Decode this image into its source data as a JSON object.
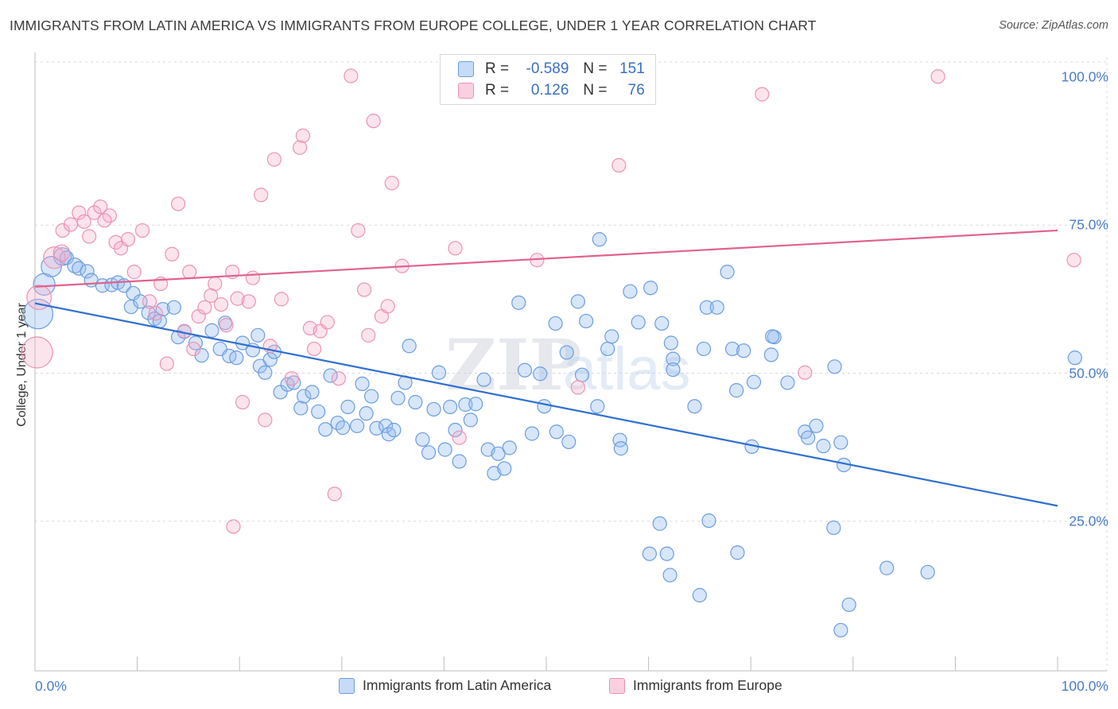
{
  "header": {
    "title": "IMMIGRANTS FROM LATIN AMERICA VS IMMIGRANTS FROM EUROPE COLLEGE, UNDER 1 YEAR CORRELATION CHART",
    "source": "Source: ZipAtlas.com"
  },
  "colors": {
    "blue": "#6d9de0",
    "blue_fill": "rgba(150,190,240,0.38)",
    "blue_line": "#2f6fd0",
    "pink": "#ec93b4",
    "pink_fill": "rgba(245,170,200,0.32)",
    "pink_line": "#e0628e",
    "grid": "#d8d8d8",
    "axis_text": "#4a7cc7"
  },
  "legend": {
    "rows": [
      {
        "r_label": "R =",
        "r_value": "-0.589",
        "n_label": "N =",
        "n_value": "151"
      },
      {
        "r_label": "R =",
        "r_value": "0.126",
        "n_label": "N =",
        "n_value": "76"
      }
    ]
  },
  "bottom_legend": {
    "items": [
      "Immigrants from Latin America",
      "Immigrants from Europe"
    ]
  },
  "watermark": {
    "part1": "ZIP",
    "part2": "atlas"
  },
  "chart_data": {
    "type": "scatter",
    "title": "IMMIGRANTS FROM LATIN AMERICA VS IMMIGRANTS FROM EUROPE COLLEGE, UNDER 1 YEAR CORRELATION CHART",
    "xlabel": "",
    "ylabel": "College, Under 1 year",
    "xlim": [
      0,
      100
    ],
    "ylim": [
      0,
      102
    ],
    "x_tick_labels": {
      "left": "0.0%",
      "right": "100.0%"
    },
    "y_ticks": [
      {
        "value": 100,
        "label": "100.0%"
      },
      {
        "value": 75,
        "label": "75.0%"
      },
      {
        "value": 50,
        "label": "50.0%"
      },
      {
        "value": 25,
        "label": "25.0%"
      }
    ],
    "x_minor_ticks": [
      0,
      10,
      20,
      30,
      40,
      50,
      60,
      70,
      80,
      90,
      100
    ],
    "series": [
      {
        "name": "Immigrants from Latin America",
        "color": "blue",
        "r": -0.589,
        "n": 151,
        "trend": {
          "x0": 0,
          "y0": 61.8,
          "x1": 100,
          "y1": 27.6
        },
        "points": [
          [
            0.3,
            60,
            2.2
          ],
          [
            0.9,
            65,
            1.6
          ],
          [
            1.6,
            68,
            1.5
          ],
          [
            2.7,
            69.7,
            1.3
          ],
          [
            3.1,
            69.5,
            1
          ],
          [
            3.9,
            68.2,
            1.1
          ],
          [
            4.3,
            67.7,
            1
          ],
          [
            5.1,
            67.2,
            1
          ],
          [
            5.5,
            65.7,
            1
          ],
          [
            6.6,
            64.8,
            1
          ],
          [
            7.5,
            64.9,
            1
          ],
          [
            8.1,
            65.3,
            1
          ],
          [
            8.7,
            64.8,
            1
          ],
          [
            9.6,
            63.5,
            1
          ],
          [
            9.4,
            61.2,
            1
          ],
          [
            10.3,
            62.1,
            1
          ],
          [
            11.1,
            60.2,
            1
          ],
          [
            11.7,
            59.2,
            1
          ],
          [
            12.5,
            60.8,
            1
          ],
          [
            13.6,
            61.1,
            1
          ],
          [
            12.2,
            58.8,
            1
          ],
          [
            14.0,
            56.1,
            1
          ],
          [
            14.6,
            57,
            1
          ],
          [
            15.7,
            55.1,
            1
          ],
          [
            16.3,
            53,
            1
          ],
          [
            17.3,
            57.2,
            1
          ],
          [
            18.1,
            54.1,
            1
          ],
          [
            18.6,
            58.5,
            1
          ],
          [
            19.0,
            52.9,
            1
          ],
          [
            19.7,
            52.6,
            1
          ],
          [
            20.3,
            55.1,
            1
          ],
          [
            21.3,
            53.9,
            1
          ],
          [
            21.8,
            56.4,
            1
          ],
          [
            22.0,
            51.2,
            1
          ],
          [
            22.5,
            50.1,
            1
          ],
          [
            23.0,
            52.3,
            1
          ],
          [
            23.4,
            53.6,
            1
          ],
          [
            24.0,
            46.8,
            1
          ],
          [
            24.7,
            48.1,
            1
          ],
          [
            25.3,
            48.4,
            1
          ],
          [
            26.0,
            44.1,
            1
          ],
          [
            26.3,
            46.1,
            1
          ],
          [
            27.1,
            46.8,
            1
          ],
          [
            27.7,
            43.5,
            1
          ],
          [
            28.4,
            40.5,
            1
          ],
          [
            28.9,
            49.6,
            1
          ],
          [
            29.6,
            41.6,
            1
          ],
          [
            30.1,
            40.8,
            1
          ],
          [
            30.6,
            44.3,
            1
          ],
          [
            31.5,
            41.1,
            1
          ],
          [
            32.0,
            48.2,
            1
          ],
          [
            32.4,
            43.2,
            1
          ],
          [
            32.9,
            46.1,
            1
          ],
          [
            33.4,
            40.7,
            1
          ],
          [
            34.3,
            41.1,
            1
          ],
          [
            34.6,
            39.7,
            1
          ],
          [
            35.1,
            40.4,
            1
          ],
          [
            35.5,
            45.8,
            1
          ],
          [
            36.2,
            48.4,
            1
          ],
          [
            36.6,
            54.6,
            1
          ],
          [
            37.2,
            45.1,
            1
          ],
          [
            37.9,
            38.8,
            1
          ],
          [
            38.5,
            36.6,
            1
          ],
          [
            39.0,
            43.9,
            1
          ],
          [
            39.5,
            50.1,
            1
          ],
          [
            40.1,
            37.1,
            1
          ],
          [
            40.6,
            44.3,
            1
          ],
          [
            41.1,
            40.4,
            1
          ],
          [
            41.5,
            35.1,
            1
          ],
          [
            42.1,
            44.7,
            1
          ],
          [
            42.6,
            42.1,
            1
          ],
          [
            43.1,
            44.8,
            1
          ],
          [
            43.9,
            48.9,
            1
          ],
          [
            44.3,
            37.1,
            1
          ],
          [
            44.9,
            33.1,
            1
          ],
          [
            45.3,
            36.4,
            1
          ],
          [
            45.9,
            33.9,
            1
          ],
          [
            46.4,
            37.4,
            1
          ],
          [
            47.3,
            61.9,
            1
          ],
          [
            47.9,
            50.5,
            1
          ],
          [
            48.6,
            39.8,
            1
          ],
          [
            49.4,
            49.9,
            1
          ],
          [
            49.8,
            44.4,
            1
          ],
          [
            50.9,
            58.4,
            1
          ],
          [
            51.0,
            40.1,
            1
          ],
          [
            52.0,
            53.5,
            1
          ],
          [
            52.2,
            38.4,
            1
          ],
          [
            53.1,
            62.1,
            1
          ],
          [
            53.5,
            49.7,
            1
          ],
          [
            53.9,
            58.8,
            1
          ],
          [
            55.0,
            44.4,
            1
          ],
          [
            55.2,
            72.6,
            1
          ],
          [
            56.0,
            54.1,
            1
          ],
          [
            56.4,
            56.2,
            1
          ],
          [
            57.2,
            38.7,
            1
          ],
          [
            57.3,
            37.3,
            1
          ],
          [
            58.2,
            63.8,
            1
          ],
          [
            59.0,
            58.6,
            1
          ],
          [
            60.2,
            64.4,
            1
          ],
          [
            61.3,
            58.4,
            1
          ],
          [
            62.2,
            55.1,
            1
          ],
          [
            62.4,
            52.4,
            1
          ],
          [
            62.4,
            50.6,
            1
          ],
          [
            61.1,
            24.6,
            1
          ],
          [
            60.1,
            19.5,
            1
          ],
          [
            61.8,
            19.5,
            1
          ],
          [
            62.1,
            15.9,
            1
          ],
          [
            64.5,
            44.4,
            1
          ],
          [
            65.4,
            54.1,
            1
          ],
          [
            65.7,
            61.1,
            1
          ],
          [
            66.7,
            61.1,
            1
          ],
          [
            65.9,
            25.1,
            1
          ],
          [
            65.0,
            12.5,
            1
          ],
          [
            68.2,
            54.1,
            1
          ],
          [
            68.6,
            47.1,
            1
          ],
          [
            68.7,
            19.7,
            1
          ],
          [
            67.7,
            67.1,
            1
          ],
          [
            69.3,
            53.8,
            1
          ],
          [
            70.3,
            48.5,
            1
          ],
          [
            70.1,
            37.6,
            1
          ],
          [
            72.0,
            53.1,
            1
          ],
          [
            72.3,
            56.1,
            1
          ],
          [
            73.6,
            48.4,
            1
          ],
          [
            72.1,
            56.2,
            1
          ],
          [
            75.3,
            40.1,
            1
          ],
          [
            75.6,
            39.1,
            1
          ],
          [
            76.4,
            41.1,
            1
          ],
          [
            77.1,
            37.7,
            1
          ],
          [
            78.2,
            51.1,
            1
          ],
          [
            78.8,
            38.3,
            1
          ],
          [
            78.1,
            23.9,
            1
          ],
          [
            78.8,
            6.6,
            1
          ],
          [
            79.1,
            34.5,
            1
          ],
          [
            79.6,
            10.9,
            1
          ],
          [
            83.3,
            17.1,
            1
          ],
          [
            87.3,
            16.4,
            1
          ],
          [
            101.7,
            52.6,
            1
          ]
        ]
      },
      {
        "name": "Immigrants from Europe",
        "color": "pink",
        "r": 0.126,
        "n": 76,
        "trend": {
          "x0": 0,
          "y0": 64.6,
          "x1": 100,
          "y1": 74.1
        },
        "points": [
          [
            0.2,
            53.5,
            2.3
          ],
          [
            0.4,
            62.8,
            1.8
          ],
          [
            1.9,
            69.5,
            1.6
          ],
          [
            2.6,
            70.3,
            1.2
          ],
          [
            2.7,
            74.1,
            1
          ],
          [
            3.5,
            75.1,
            1
          ],
          [
            4.3,
            77.1,
            1
          ],
          [
            4.8,
            75.6,
            1
          ],
          [
            5.3,
            73.1,
            1
          ],
          [
            5.8,
            77.1,
            1
          ],
          [
            6.4,
            78.1,
            1
          ],
          [
            7.3,
            76.6,
            1
          ],
          [
            6.8,
            75.8,
            1
          ],
          [
            7.9,
            72.1,
            1
          ],
          [
            8.4,
            71.1,
            1
          ],
          [
            9.1,
            72.6,
            1
          ],
          [
            9.7,
            67.1,
            1
          ],
          [
            10.5,
            74.1,
            1
          ],
          [
            11.2,
            62.1,
            1
          ],
          [
            11.8,
            60.1,
            1
          ],
          [
            12.3,
            65.1,
            1
          ],
          [
            12.9,
            51.6,
            1
          ],
          [
            13.4,
            70.1,
            1
          ],
          [
            14.0,
            78.6,
            1
          ],
          [
            14.6,
            57.1,
            1
          ],
          [
            15.1,
            67.1,
            1
          ],
          [
            15.5,
            54.1,
            1
          ],
          [
            16.0,
            59.6,
            1
          ],
          [
            16.6,
            61.1,
            1
          ],
          [
            17.2,
            63.1,
            1
          ],
          [
            17.6,
            65.1,
            1
          ],
          [
            18.2,
            61.6,
            1
          ],
          [
            18.7,
            58.1,
            1
          ],
          [
            19.3,
            67.1,
            1
          ],
          [
            19.4,
            24.1,
            1
          ],
          [
            19.8,
            62.6,
            1
          ],
          [
            20.3,
            45.1,
            1
          ],
          [
            20.9,
            62.1,
            1
          ],
          [
            21.3,
            66.1,
            1
          ],
          [
            22.1,
            80.1,
            1
          ],
          [
            22.5,
            42.1,
            1
          ],
          [
            23.0,
            54.6,
            1
          ],
          [
            23.4,
            86.1,
            1
          ],
          [
            24.1,
            62.5,
            1
          ],
          [
            25.1,
            49.1,
            1
          ],
          [
            25.9,
            88.1,
            1
          ],
          [
            26.2,
            90.1,
            1
          ],
          [
            26.9,
            57.6,
            1
          ],
          [
            27.3,
            54.1,
            1
          ],
          [
            27.9,
            57.1,
            1
          ],
          [
            28.6,
            58.6,
            1
          ],
          [
            29.3,
            29.6,
            1
          ],
          [
            29.7,
            49.1,
            1
          ],
          [
            30.9,
            100.2,
            1
          ],
          [
            31.6,
            74.1,
            1
          ],
          [
            32.2,
            64.1,
            1
          ],
          [
            32.6,
            56.4,
            1
          ],
          [
            33.1,
            92.6,
            1
          ],
          [
            33.9,
            59.6,
            1
          ],
          [
            34.5,
            61.3,
            1
          ],
          [
            34.9,
            82.1,
            1
          ],
          [
            35.9,
            68.1,
            1
          ],
          [
            41.1,
            71.1,
            1
          ],
          [
            41.5,
            39.1,
            1
          ],
          [
            49.1,
            69.1,
            1
          ],
          [
            53.1,
            47.6,
            1
          ],
          [
            57.1,
            85.1,
            1
          ],
          [
            71.1,
            97.1,
            1
          ],
          [
            75.3,
            50.1,
            1
          ],
          [
            88.3,
            100.1,
            1
          ],
          [
            101.6,
            69.1,
            1
          ]
        ]
      }
    ],
    "legend": "top-center",
    "grid": true
  }
}
